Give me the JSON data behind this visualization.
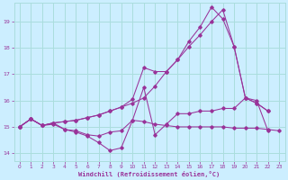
{
  "xlabel": "Windchill (Refroidissement éolien,°C)",
  "background_color": "#cceeff",
  "grid_color": "#aadddd",
  "line_color": "#993399",
  "xlim": [
    -0.5,
    23.5
  ],
  "ylim": [
    13.7,
    19.7
  ],
  "yticks": [
    14,
    15,
    16,
    17,
    18,
    19
  ],
  "xticks": [
    0,
    1,
    2,
    3,
    4,
    5,
    6,
    7,
    8,
    9,
    10,
    11,
    12,
    13,
    14,
    15,
    16,
    17,
    18,
    19,
    20,
    21,
    22,
    23
  ],
  "series": [
    {
      "x": [
        0,
        1,
        2,
        3,
        4,
        5,
        6,
        7,
        8,
        9,
        10,
        11,
        12,
        13,
        14,
        15,
        16,
        17,
        18,
        19,
        20,
        21,
        22,
        23
      ],
      "y": [
        15.0,
        15.3,
        15.05,
        15.1,
        14.9,
        14.85,
        14.7,
        14.65,
        14.8,
        14.85,
        15.25,
        15.2,
        15.1,
        15.05,
        15.0,
        15.0,
        15.0,
        15.0,
        15.0,
        14.95,
        14.95,
        14.95,
        14.9,
        14.85
      ]
    },
    {
      "x": [
        0,
        1,
        2,
        3,
        4,
        5,
        6,
        7,
        8,
        9,
        10,
        11,
        12,
        13,
        14,
        15,
        16,
        17,
        18,
        19,
        20,
        21,
        22
      ],
      "y": [
        15.0,
        15.3,
        15.05,
        15.15,
        14.9,
        14.8,
        14.65,
        14.4,
        14.1,
        14.2,
        15.25,
        16.5,
        14.7,
        15.1,
        15.5,
        15.5,
        15.6,
        15.6,
        15.7,
        15.7,
        16.1,
        16.0,
        14.85
      ]
    },
    {
      "x": [
        0,
        1,
        2,
        3,
        4,
        5,
        6,
        7,
        8,
        9,
        10,
        11,
        12,
        13,
        14,
        15,
        16,
        17,
        18,
        19,
        20,
        21,
        22
      ],
      "y": [
        15.0,
        15.3,
        15.05,
        15.15,
        15.2,
        15.25,
        15.35,
        15.45,
        15.6,
        15.75,
        15.9,
        16.1,
        16.55,
        17.1,
        17.55,
        18.05,
        18.5,
        19.0,
        19.45,
        18.05,
        16.1,
        15.9,
        15.6
      ]
    },
    {
      "x": [
        0,
        1,
        2,
        3,
        4,
        5,
        6,
        7,
        8,
        9,
        10,
        11,
        12,
        13,
        14,
        15,
        16,
        17,
        18,
        19,
        20,
        21,
        22
      ],
      "y": [
        15.0,
        15.3,
        15.05,
        15.15,
        15.2,
        15.25,
        15.35,
        15.45,
        15.6,
        15.75,
        16.05,
        17.25,
        17.1,
        17.1,
        17.55,
        18.25,
        18.8,
        19.55,
        19.1,
        18.05,
        16.1,
        15.9,
        15.6
      ]
    }
  ]
}
